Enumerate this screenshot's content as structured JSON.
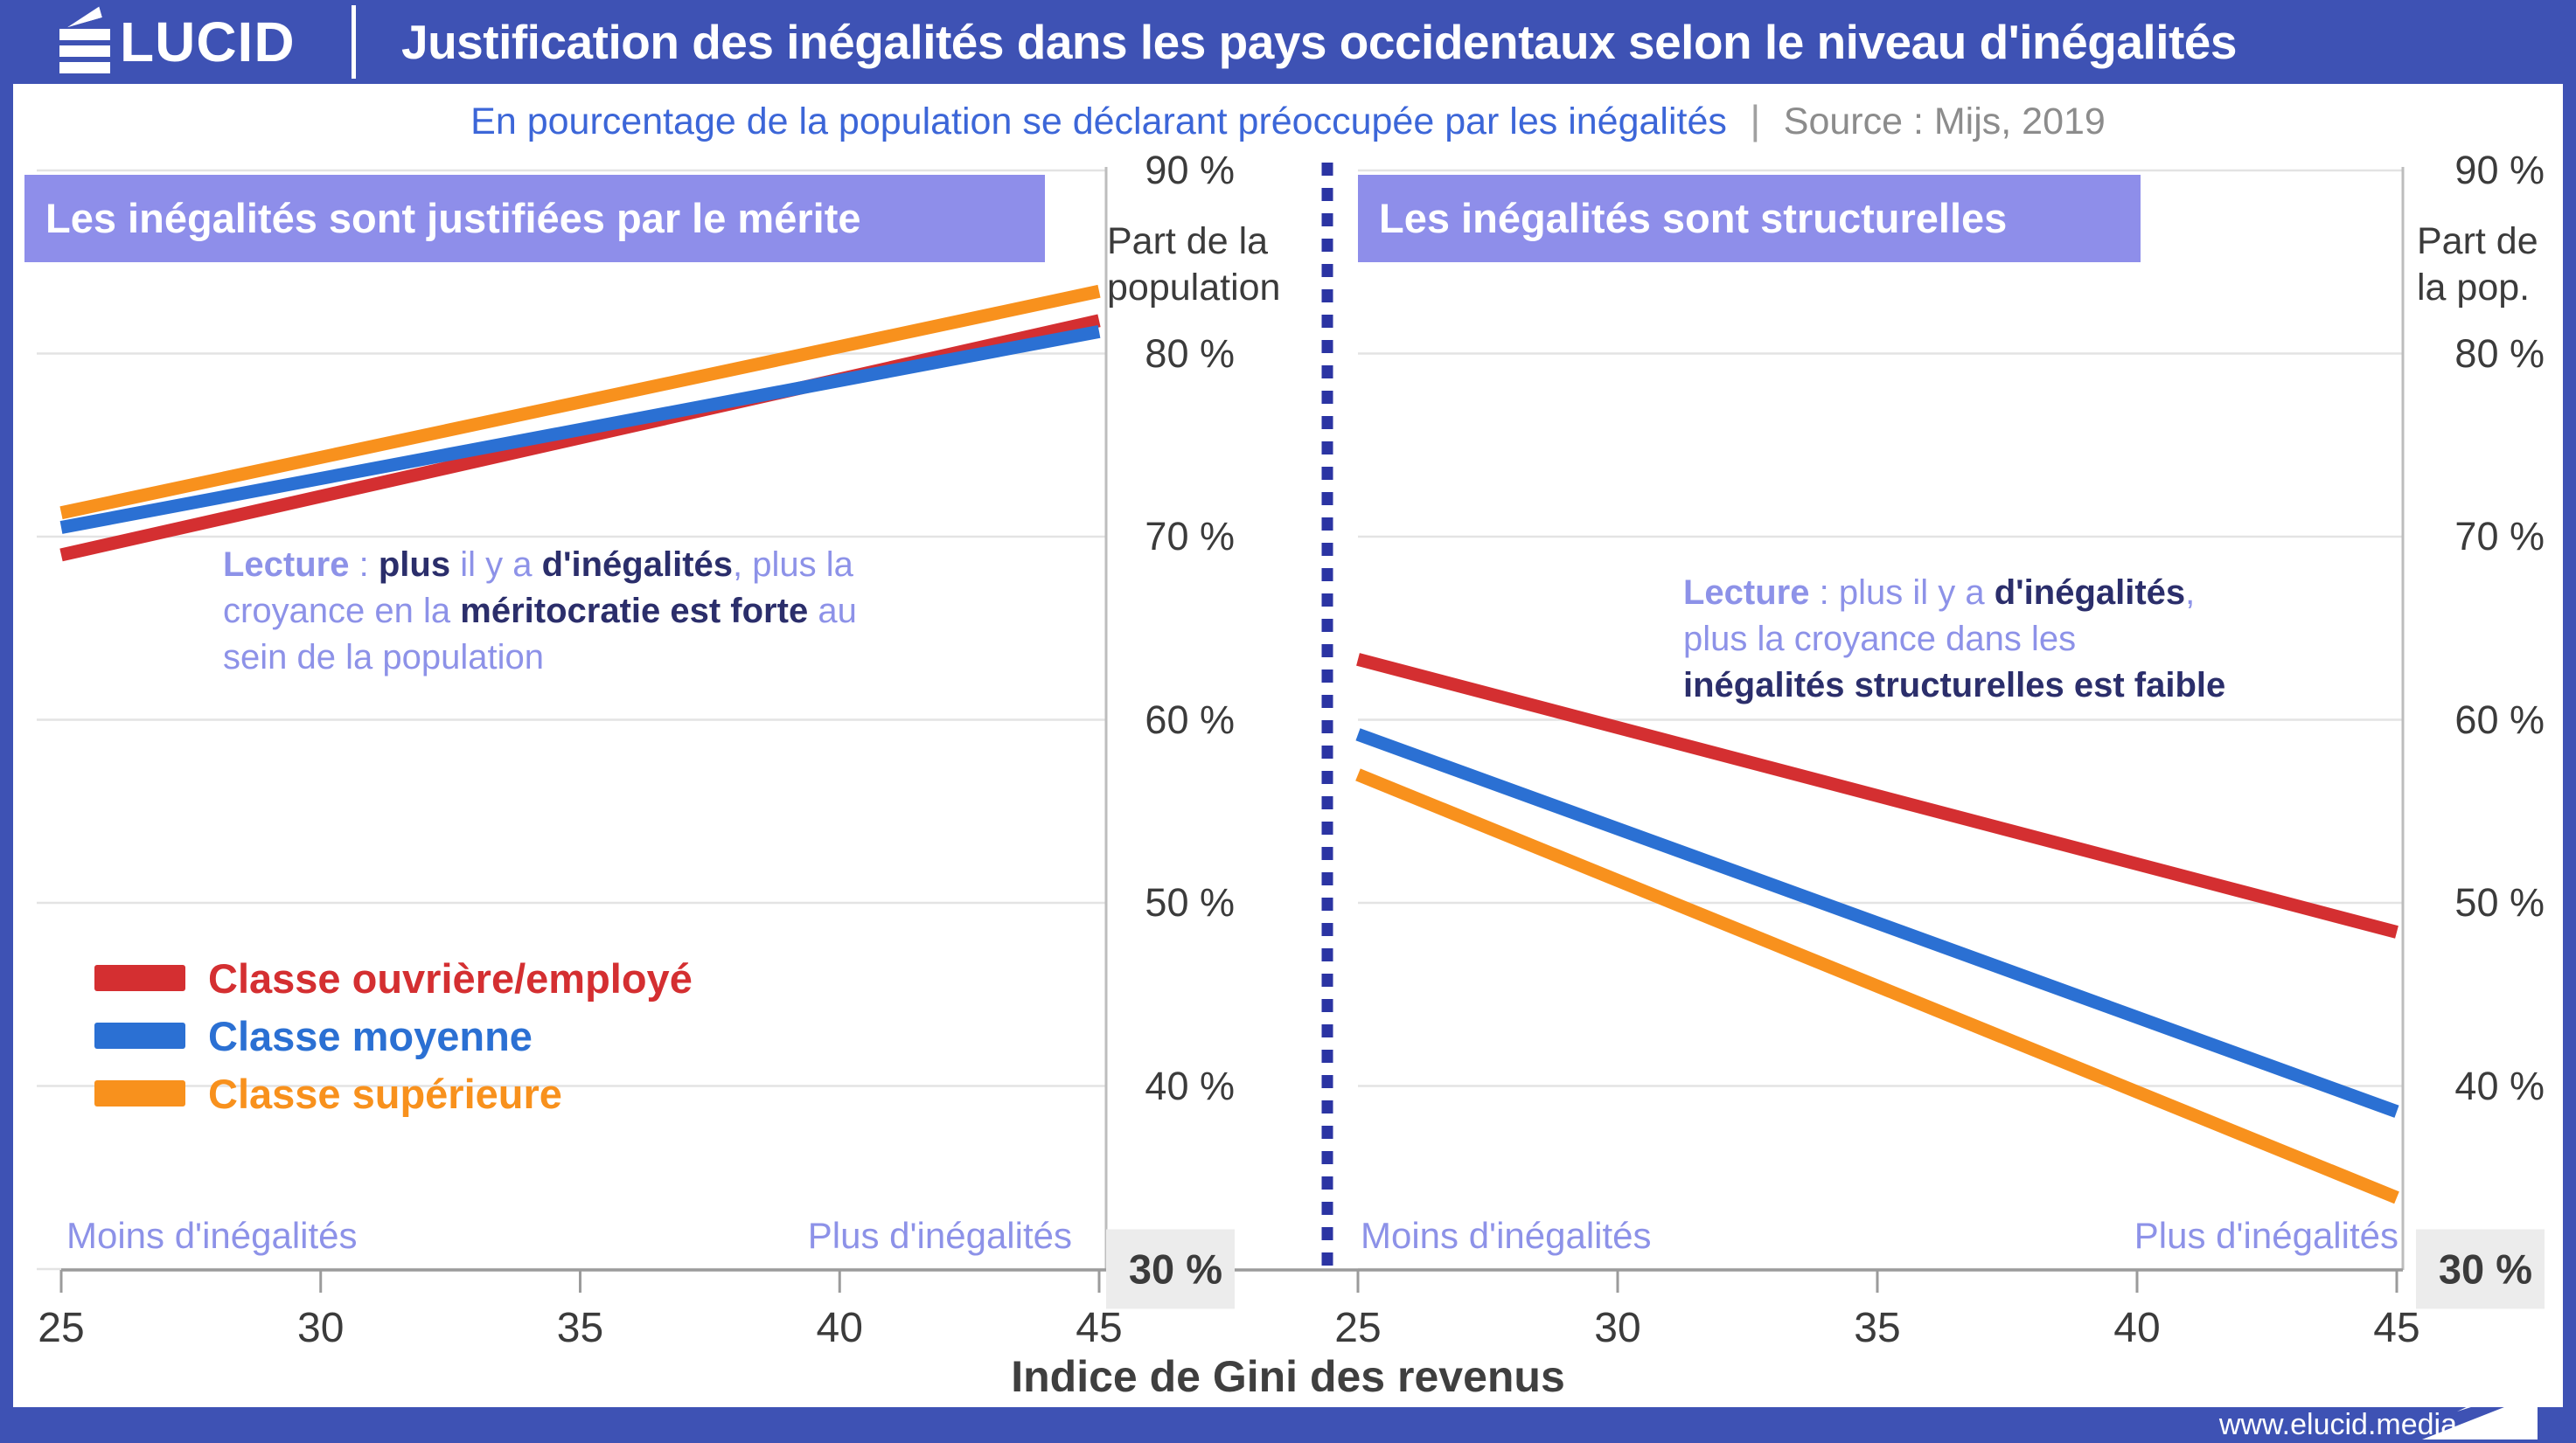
{
  "header": {
    "logo_rest": "LUCID",
    "title": "Justification des inégalités dans les pays occidentaux selon le niveau d'inégalités"
  },
  "subtitle": {
    "text": "En pourcentage de la population se déclarant préoccupée par les inégalités",
    "separator": "|",
    "source": "Source : Mijs, 2019"
  },
  "colors": {
    "brand_blue": "#3e52b4",
    "lavender_box": "#8e8eea",
    "lavender_text": "#8d92e8",
    "navy_text": "#2b2e6b",
    "red": "#d42f31",
    "blue": "#2b70d3",
    "orange": "#f8911d",
    "grid": "#e3e3e3",
    "axis": "#9b9b9b",
    "boundary": "#bdbdbd",
    "dotted": "#2b34a3",
    "highlight_bg": "#ececec"
  },
  "chart_data": [
    {
      "type": "line",
      "title": "Les inégalités sont justifiées par le mérite",
      "x": [
        25,
        45
      ],
      "x_ticks": [
        25,
        30,
        35,
        40,
        45
      ],
      "xlim": [
        25,
        45
      ],
      "ylim": [
        30,
        90
      ],
      "grid": true,
      "series": [
        {
          "name": "Classe ouvrière/employé",
          "color_key": "red",
          "values": [
            69.0,
            81.8
          ]
        },
        {
          "name": "Classe moyenne",
          "color_key": "blue",
          "values": [
            70.5,
            81.2
          ]
        },
        {
          "name": "Classe supérieure",
          "color_key": "orange",
          "values": [
            71.3,
            83.4
          ]
        }
      ],
      "annotations": {
        "left": "Moins d'inégalités",
        "right": "Plus d'inégalités"
      }
    },
    {
      "type": "line",
      "title": "Les inégalités sont structurelles",
      "x": [
        25,
        45
      ],
      "x_ticks": [
        25,
        30,
        35,
        40,
        45
      ],
      "xlim": [
        25,
        45
      ],
      "ylim": [
        30,
        90
      ],
      "grid": true,
      "series": [
        {
          "name": "Classe ouvrière/employé",
          "color_key": "red",
          "values": [
            63.3,
            48.4
          ]
        },
        {
          "name": "Classe moyenne",
          "color_key": "blue",
          "values": [
            59.2,
            38.6
          ]
        },
        {
          "name": "Classe supérieure",
          "color_key": "orange",
          "values": [
            57.0,
            33.9
          ]
        }
      ],
      "annotations": {
        "left": "Moins d'inégalités",
        "right": "Plus d'inégalités"
      }
    }
  ],
  "y_axis": {
    "ticks": [
      "90 %",
      "80 %",
      "70 %",
      "60 %",
      "50 %",
      "40 %",
      "30 %"
    ],
    "tick_values": [
      90,
      80,
      70,
      60,
      50,
      40,
      30
    ],
    "highlight_value": 30,
    "label_middle_1": "Part de la",
    "label_middle_2": "population",
    "label_right_1": "Part de",
    "label_right_2": "la pop."
  },
  "x_axis": {
    "title": "Indice de Gini des revenus"
  },
  "lecture_left": {
    "lines": [
      [
        {
          "t": "Lecture",
          "s": "blav"
        },
        {
          "t": " : ",
          "s": "lav"
        },
        {
          "t": "plus",
          "s": "navy"
        },
        {
          "t": " il y a ",
          "s": "lav"
        },
        {
          "t": "d'inégalités",
          "s": "navy"
        },
        {
          "t": ", plus la",
          "s": "lav"
        }
      ],
      [
        {
          "t": "croyance en la ",
          "s": "lav"
        },
        {
          "t": "méritocratie est forte",
          "s": "navy"
        },
        {
          "t": " au",
          "s": "lav"
        }
      ],
      [
        {
          "t": "sein de la population",
          "s": "lav"
        }
      ]
    ]
  },
  "lecture_right": {
    "lines": [
      [
        {
          "t": "Lecture",
          "s": "blav"
        },
        {
          "t": " : plus il y a ",
          "s": "lav"
        },
        {
          "t": "d'inégalités",
          "s": "navy"
        },
        {
          "t": ",",
          "s": "lav"
        }
      ],
      [
        {
          "t": "plus la croyance dans les",
          "s": "lav"
        }
      ],
      [
        {
          "t": "inégalités structurelles est faible",
          "s": "navy"
        }
      ]
    ]
  },
  "footer": {
    "url": "www.elucid.media"
  }
}
